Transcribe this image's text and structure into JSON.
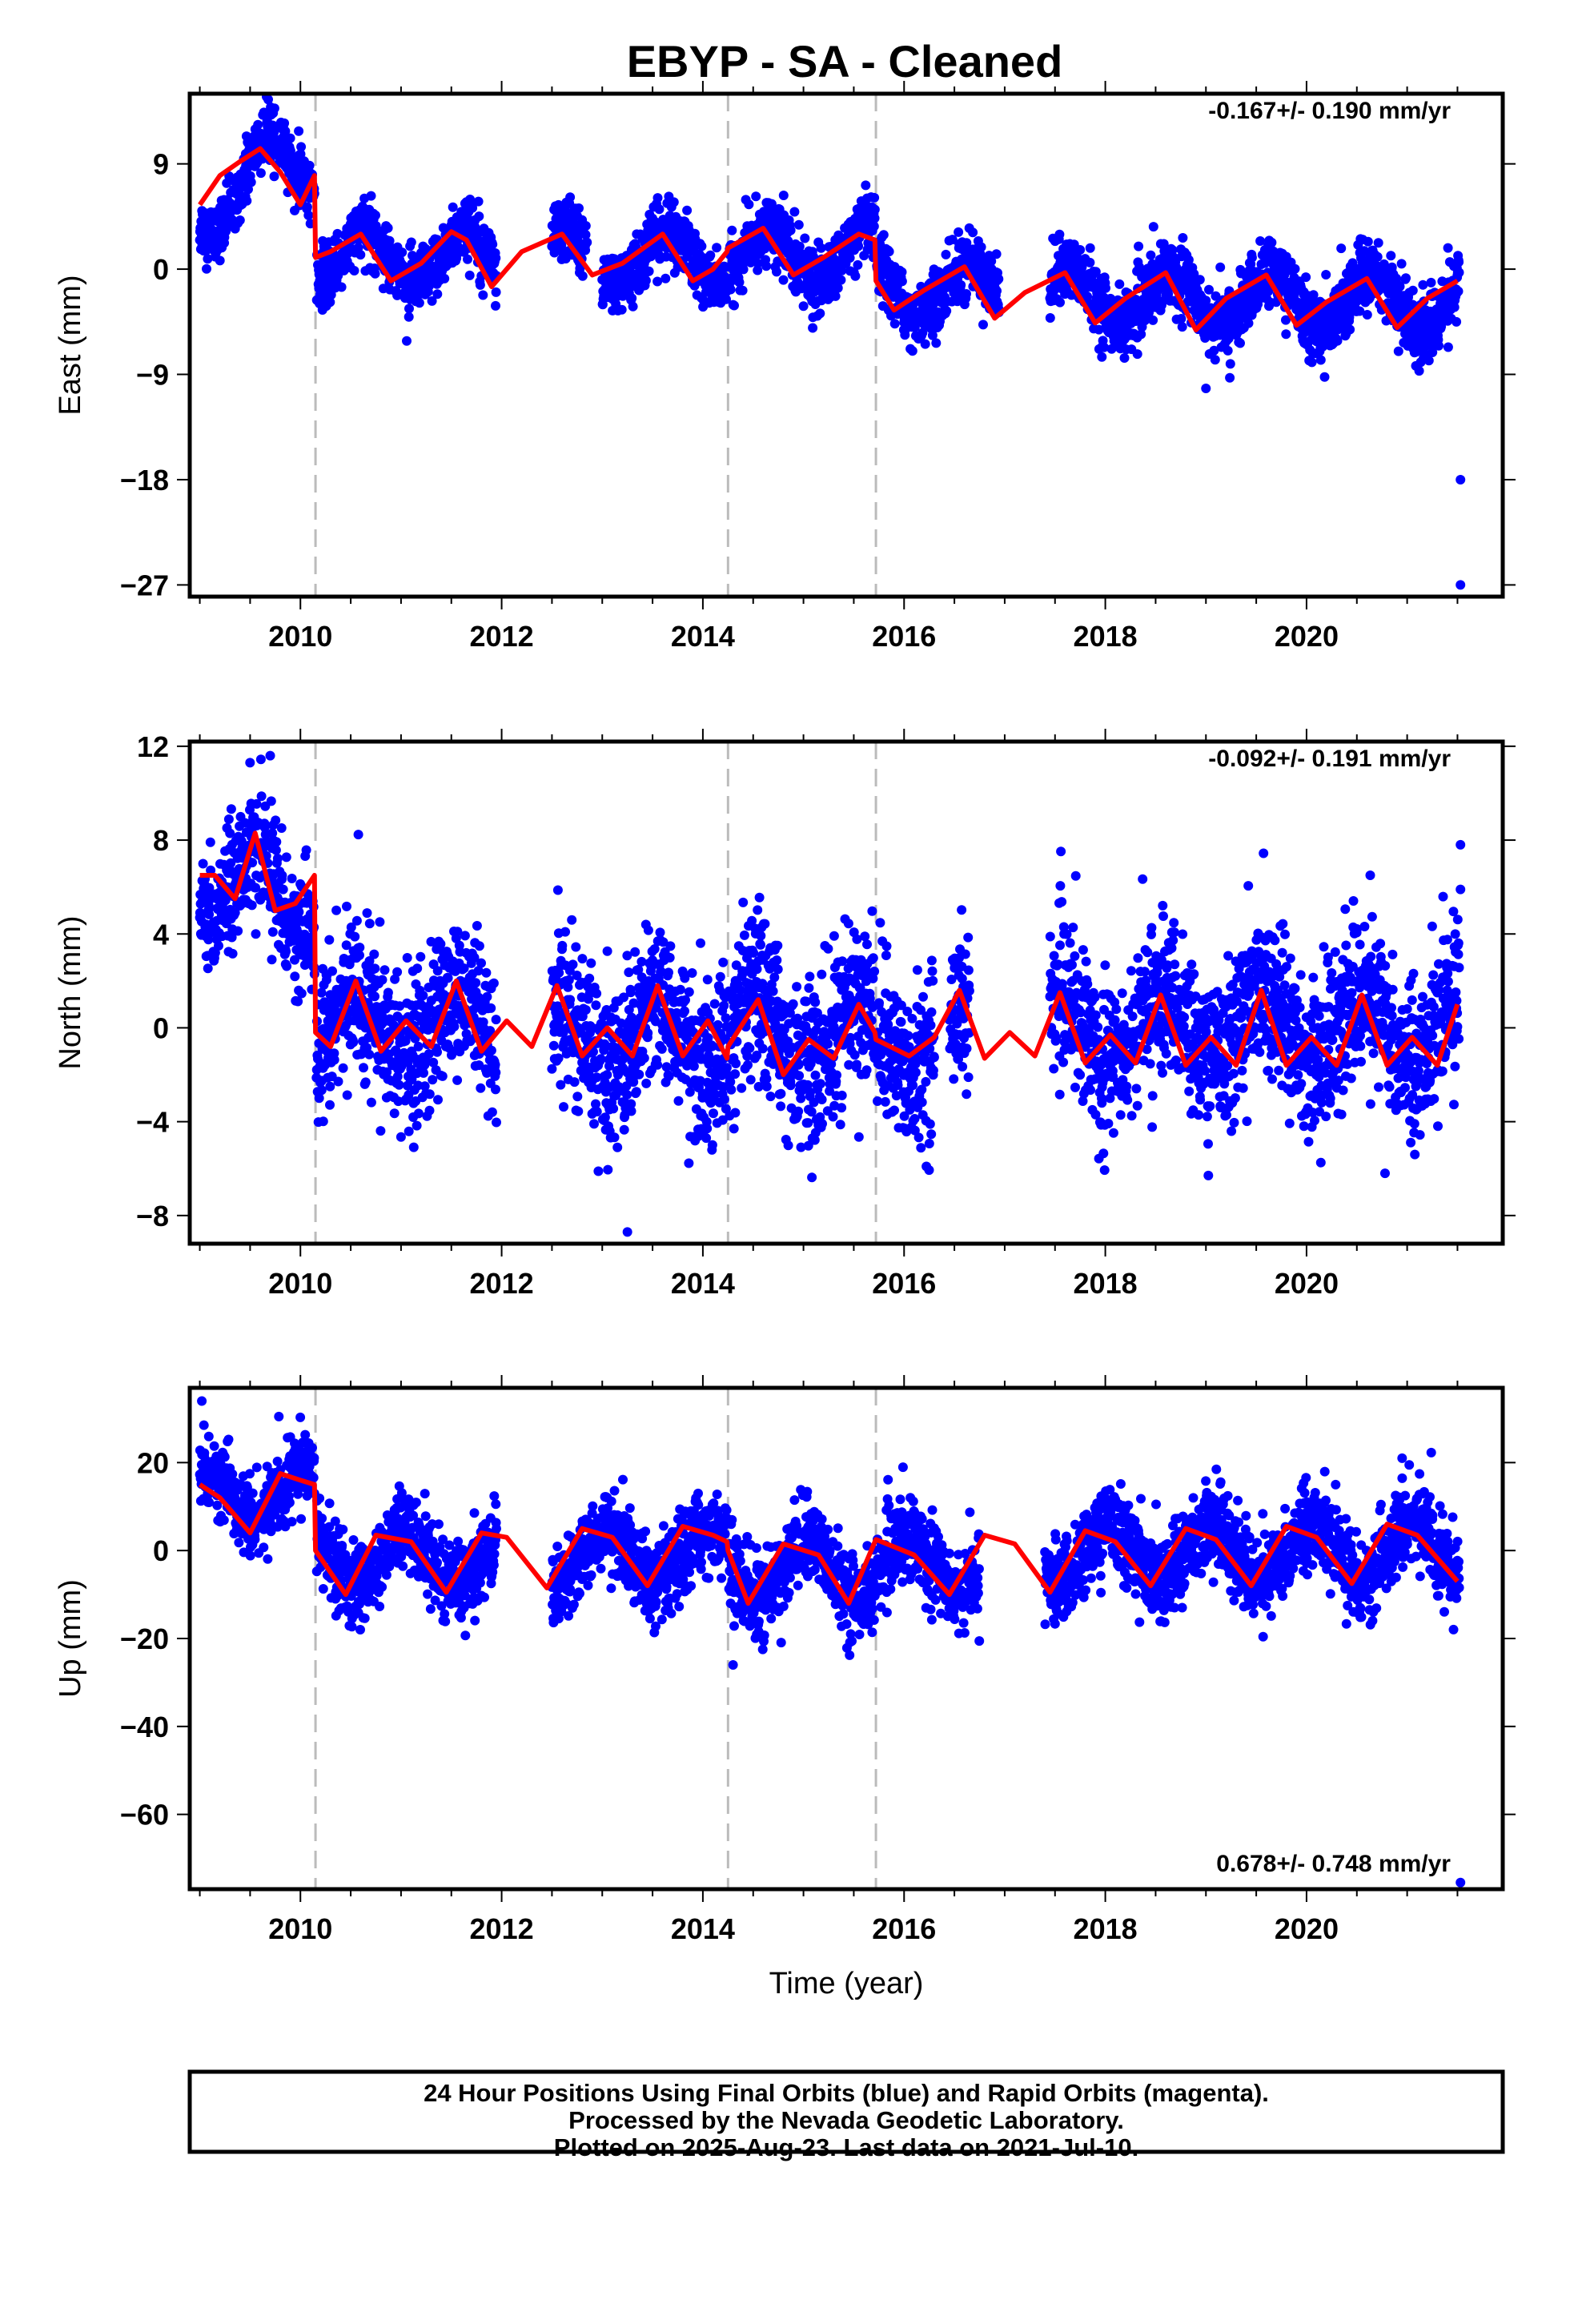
{
  "title": "EBYP  - SA - Cleaned",
  "colors": {
    "points": "#0000ff",
    "model": "#ff0000",
    "breaks": "#bbbbbb",
    "frame": "#000000"
  },
  "footer": {
    "lines": [
      "24 Hour Positions Using Final Orbits (blue) and Rapid Orbits (magenta).",
      "Processed by the Nevada Geodetic Laboratory.",
      "Plotted on 2025-Aug-23. Last data on 2021-Jul-10."
    ]
  },
  "chart_data": [
    {
      "type": "scatter",
      "title": "EBYP  - SA - Cleaned",
      "xlabel": "",
      "ylabel": "East (mm)",
      "xlim": [
        2008.9,
        2021.95
      ],
      "ylim": [
        -28,
        15
      ],
      "xticks": [
        2010,
        2012,
        2014,
        2016,
        2018,
        2020
      ],
      "xtick_labels": [
        "2010",
        "2012",
        "2014",
        "2016",
        "2018",
        "2020"
      ],
      "yticks": [
        9,
        0,
        -9,
        -18,
        -27
      ],
      "ytick_labels": [
        "9",
        "0",
        "−9",
        "−18",
        "−27"
      ],
      "rate_label": "-0.167+/- 0.190 mm/yr",
      "rate_position": "top-right",
      "breaks": [
        2010.15,
        2014.25,
        2015.72
      ],
      "model": {
        "name": "",
        "x": [
          2009.0,
          2009.2,
          2009.4,
          2009.6,
          2009.8,
          2010.0,
          2010.14,
          2010.15,
          2010.3,
          2010.6,
          2010.9,
          2011.2,
          2011.5,
          2011.65,
          2011.9,
          2012.2,
          2012.6,
          2012.9,
          2013.2,
          2013.6,
          2013.9,
          2014.1,
          2014.24,
          2014.25,
          2014.6,
          2014.9,
          2015.2,
          2015.55,
          2015.71,
          2015.72,
          2015.9,
          2016.2,
          2016.6,
          2016.9,
          2017.2,
          2017.6,
          2017.9,
          2018.2,
          2018.6,
          2018.9,
          2019.2,
          2019.6,
          2019.9,
          2020.2,
          2020.6,
          2020.9,
          2021.2,
          2021.5
        ],
        "y": [
          5.5,
          8.0,
          9.2,
          10.3,
          8.3,
          5.5,
          8.0,
          1.0,
          1.5,
          3.0,
          -1.0,
          0.5,
          3.2,
          2.5,
          -1.5,
          1.5,
          3.0,
          -0.5,
          0.5,
          3.0,
          -1.0,
          0.0,
          1.5,
          1.8,
          3.5,
          -0.5,
          1.0,
          3.0,
          2.5,
          -1.0,
          -3.5,
          -1.8,
          0.2,
          -4.2,
          -2.0,
          -0.3,
          -4.6,
          -2.5,
          -0.3,
          -5.2,
          -2.5,
          -0.5,
          -4.8,
          -2.8,
          -0.8,
          -5.0,
          -2.5,
          -1.0
        ]
      },
      "segments": [
        {
          "start": 2009.0,
          "end": 2010.14,
          "level": 5.5,
          "trend": 4.0,
          "amp": 3.0,
          "phase": 0.4,
          "noise": 1.2
        },
        {
          "start": 2010.16,
          "end": 2011.95,
          "level": 1.0,
          "trend": 0.0,
          "amp": 2.3,
          "phase": 0.4,
          "noise": 1.3
        },
        {
          "start": 2012.5,
          "end": 2012.85,
          "level": 1.0,
          "trend": 0.0,
          "amp": 2.3,
          "phase": 0.4,
          "noise": 1.3
        },
        {
          "start": 2013.0,
          "end": 2014.24,
          "level": 1.0,
          "trend": 0.0,
          "amp": 2.3,
          "phase": 0.4,
          "noise": 1.3
        },
        {
          "start": 2014.26,
          "end": 2015.71,
          "level": 1.2,
          "trend": 0.0,
          "amp": 2.3,
          "phase": 0.4,
          "noise": 1.3
        },
        {
          "start": 2015.73,
          "end": 2016.95,
          "level": -1.8,
          "trend": 0.0,
          "amp": 2.2,
          "phase": 0.4,
          "noise": 1.3
        },
        {
          "start": 2017.45,
          "end": 2021.52,
          "level": -2.3,
          "trend": -0.15,
          "amp": 2.3,
          "phase": 0.4,
          "noise": 1.4
        }
      ],
      "outliers": [
        {
          "x": 2009.68,
          "y": 14.5
        },
        {
          "x": 2019.0,
          "y": -10.2
        },
        {
          "x": 2021.53,
          "y": -18.0
        },
        {
          "x": 2021.53,
          "y": -27.0
        }
      ]
    },
    {
      "type": "scatter",
      "xlabel": "",
      "ylabel": "North (mm)",
      "xlim": [
        2008.9,
        2021.95
      ],
      "ylim": [
        -9.2,
        12.2
      ],
      "xticks": [
        2010,
        2012,
        2014,
        2016,
        2018,
        2020
      ],
      "xtick_labels": [
        "2010",
        "2012",
        "2014",
        "2016",
        "2018",
        "2020"
      ],
      "yticks": [
        12,
        8,
        4,
        0,
        -4,
        -8
      ],
      "ytick_labels": [
        "12",
        "8",
        "4",
        "0",
        "−4",
        "−8"
      ],
      "rate_label": "-0.092+/- 0.191 mm/yr",
      "rate_position": "top-right",
      "breaks": [
        2010.15,
        2014.25,
        2015.72
      ],
      "model": {
        "name": "",
        "x": [
          2009.0,
          2009.15,
          2009.35,
          2009.55,
          2009.75,
          2009.95,
          2010.14,
          2010.15,
          2010.3,
          2010.55,
          2010.8,
          2011.05,
          2011.3,
          2011.55,
          2011.8,
          2012.05,
          2012.3,
          2012.55,
          2012.8,
          2013.05,
          2013.3,
          2013.55,
          2013.8,
          2014.05,
          2014.24,
          2014.25,
          2014.55,
          2014.8,
          2015.05,
          2015.3,
          2015.55,
          2015.71,
          2015.72,
          2016.05,
          2016.3,
          2016.55,
          2016.8,
          2017.05,
          2017.3,
          2017.55,
          2017.8,
          2018.05,
          2018.3,
          2018.55,
          2018.8,
          2019.05,
          2019.3,
          2019.55,
          2019.8,
          2020.05,
          2020.3,
          2020.55,
          2020.8,
          2021.05,
          2021.3,
          2021.5
        ],
        "y": [
          6.5,
          6.5,
          5.5,
          8.3,
          5.0,
          5.3,
          6.5,
          -0.2,
          -0.8,
          2.0,
          -1.0,
          0.3,
          -0.8,
          2.0,
          -1.0,
          0.3,
          -0.8,
          1.8,
          -1.2,
          0.0,
          -1.2,
          1.8,
          -1.2,
          0.3,
          -1.3,
          -0.8,
          1.2,
          -2.0,
          -0.5,
          -1.3,
          1.0,
          -0.2,
          -0.5,
          -1.2,
          -0.4,
          1.6,
          -1.3,
          -0.2,
          -1.2,
          1.5,
          -1.5,
          -0.3,
          -1.5,
          1.4,
          -1.6,
          -0.4,
          -1.6,
          1.6,
          -1.6,
          -0.4,
          -1.6,
          1.4,
          -1.6,
          -0.4,
          -1.6,
          1.0
        ]
      },
      "segments": [
        {
          "start": 2009.0,
          "end": 2010.14,
          "level": 6.5,
          "trend": -1.0,
          "amp": 1.5,
          "phase": 0.3,
          "noise": 1.3
        },
        {
          "start": 2010.16,
          "end": 2011.95,
          "level": 0.0,
          "trend": 0.0,
          "amp": 1.4,
          "phase": 0.3,
          "noise": 1.6
        },
        {
          "start": 2012.5,
          "end": 2014.24,
          "level": -0.3,
          "trend": 0.0,
          "amp": 1.4,
          "phase": 0.3,
          "noise": 1.7
        },
        {
          "start": 2014.26,
          "end": 2015.71,
          "level": -0.4,
          "trend": 0.0,
          "amp": 1.5,
          "phase": 0.3,
          "noise": 1.7
        },
        {
          "start": 2015.73,
          "end": 2016.3,
          "level": -0.5,
          "trend": 0.0,
          "amp": 1.4,
          "phase": 0.3,
          "noise": 1.7
        },
        {
          "start": 2016.45,
          "end": 2016.65,
          "level": -0.5,
          "trend": 0.0,
          "amp": 1.4,
          "phase": 0.3,
          "noise": 1.7
        },
        {
          "start": 2017.45,
          "end": 2021.52,
          "level": 0.0,
          "trend": 0.0,
          "amp": 1.4,
          "phase": 0.3,
          "noise": 1.6
        }
      ],
      "outliers": [
        {
          "x": 2013.25,
          "y": -8.7
        },
        {
          "x": 2020.78,
          "y": -6.2
        },
        {
          "x": 2021.53,
          "y": 7.8
        },
        {
          "x": 2021.53,
          "y": 5.9
        },
        {
          "x": 2009.7,
          "y": 11.6
        }
      ]
    },
    {
      "type": "scatter",
      "xlabel": "Time (year)",
      "ylabel": "Up (mm)",
      "xlim": [
        2008.9,
        2021.95
      ],
      "ylim": [
        -77,
        37
      ],
      "xticks": [
        2010,
        2012,
        2014,
        2016,
        2018,
        2020
      ],
      "xtick_labels": [
        "2010",
        "2012",
        "2014",
        "2016",
        "2018",
        "2020"
      ],
      "yticks": [
        20,
        0,
        -20,
        -40,
        -60
      ],
      "ytick_labels": [
        "20",
        "0",
        "−20",
        "−40",
        "−60"
      ],
      "rate_label": "0.678+/- 0.748 mm/yr",
      "rate_position": "bottom-right",
      "breaks": [
        2010.15,
        2014.25,
        2015.72
      ],
      "model": {
        "name": "",
        "x": [
          2009.0,
          2009.2,
          2009.5,
          2009.8,
          2010.0,
          2010.14,
          2010.15,
          2010.45,
          2010.75,
          2011.1,
          2011.45,
          2011.8,
          2012.05,
          2012.45,
          2012.8,
          2013.1,
          2013.45,
          2013.8,
          2014.1,
          2014.24,
          2014.25,
          2014.45,
          2014.8,
          2015.15,
          2015.45,
          2015.71,
          2015.72,
          2016.1,
          2016.45,
          2016.8,
          2017.1,
          2017.45,
          2017.8,
          2018.1,
          2018.45,
          2018.8,
          2019.1,
          2019.45,
          2019.8,
          2020.1,
          2020.45,
          2020.8,
          2021.1,
          2021.5
        ],
        "y": [
          15.0,
          12.0,
          4.0,
          17.5,
          16.0,
          15.0,
          0.0,
          -10.0,
          3.5,
          2.0,
          -9.5,
          4.0,
          3.0,
          -8.5,
          5.0,
          3.0,
          -8.0,
          5.5,
          3.5,
          2.0,
          0.0,
          -12.0,
          1.5,
          -1.0,
          -12.0,
          2.0,
          2.5,
          -1.0,
          -10.0,
          3.5,
          1.5,
          -9.5,
          4.5,
          2.0,
          -8.0,
          5.0,
          2.5,
          -8.0,
          5.5,
          3.0,
          -7.5,
          6.0,
          3.5,
          -7.0
        ]
      },
      "segments": [
        {
          "start": 2009.0,
          "end": 2010.14,
          "level": 13.0,
          "trend": 0.0,
          "amp": 6.0,
          "phase": 0.8,
          "noise": 4.2
        },
        {
          "start": 2010.16,
          "end": 2011.95,
          "level": -2.0,
          "trend": 0.0,
          "amp": 6.0,
          "phase": 0.8,
          "noise": 4.5
        },
        {
          "start": 2012.5,
          "end": 2014.24,
          "level": -1.5,
          "trend": 0.0,
          "amp": 6.5,
          "phase": 0.8,
          "noise": 4.6
        },
        {
          "start": 2014.26,
          "end": 2015.71,
          "level": -4.5,
          "trend": 0.0,
          "amp": 6.5,
          "phase": 0.8,
          "noise": 4.6
        },
        {
          "start": 2015.73,
          "end": 2016.75,
          "level": -3.0,
          "trend": 0.0,
          "amp": 6.0,
          "phase": 0.8,
          "noise": 4.6
        },
        {
          "start": 2017.4,
          "end": 2021.52,
          "level": -1.0,
          "trend": 0.3,
          "amp": 6.5,
          "phase": 0.8,
          "noise": 4.6
        }
      ],
      "outliers": [
        {
          "x": 2009.02,
          "y": 34.0
        },
        {
          "x": 2021.53,
          "y": -75.5
        },
        {
          "x": 2014.3,
          "y": -26.0
        },
        {
          "x": 2020.95,
          "y": 21.0
        }
      ]
    }
  ]
}
